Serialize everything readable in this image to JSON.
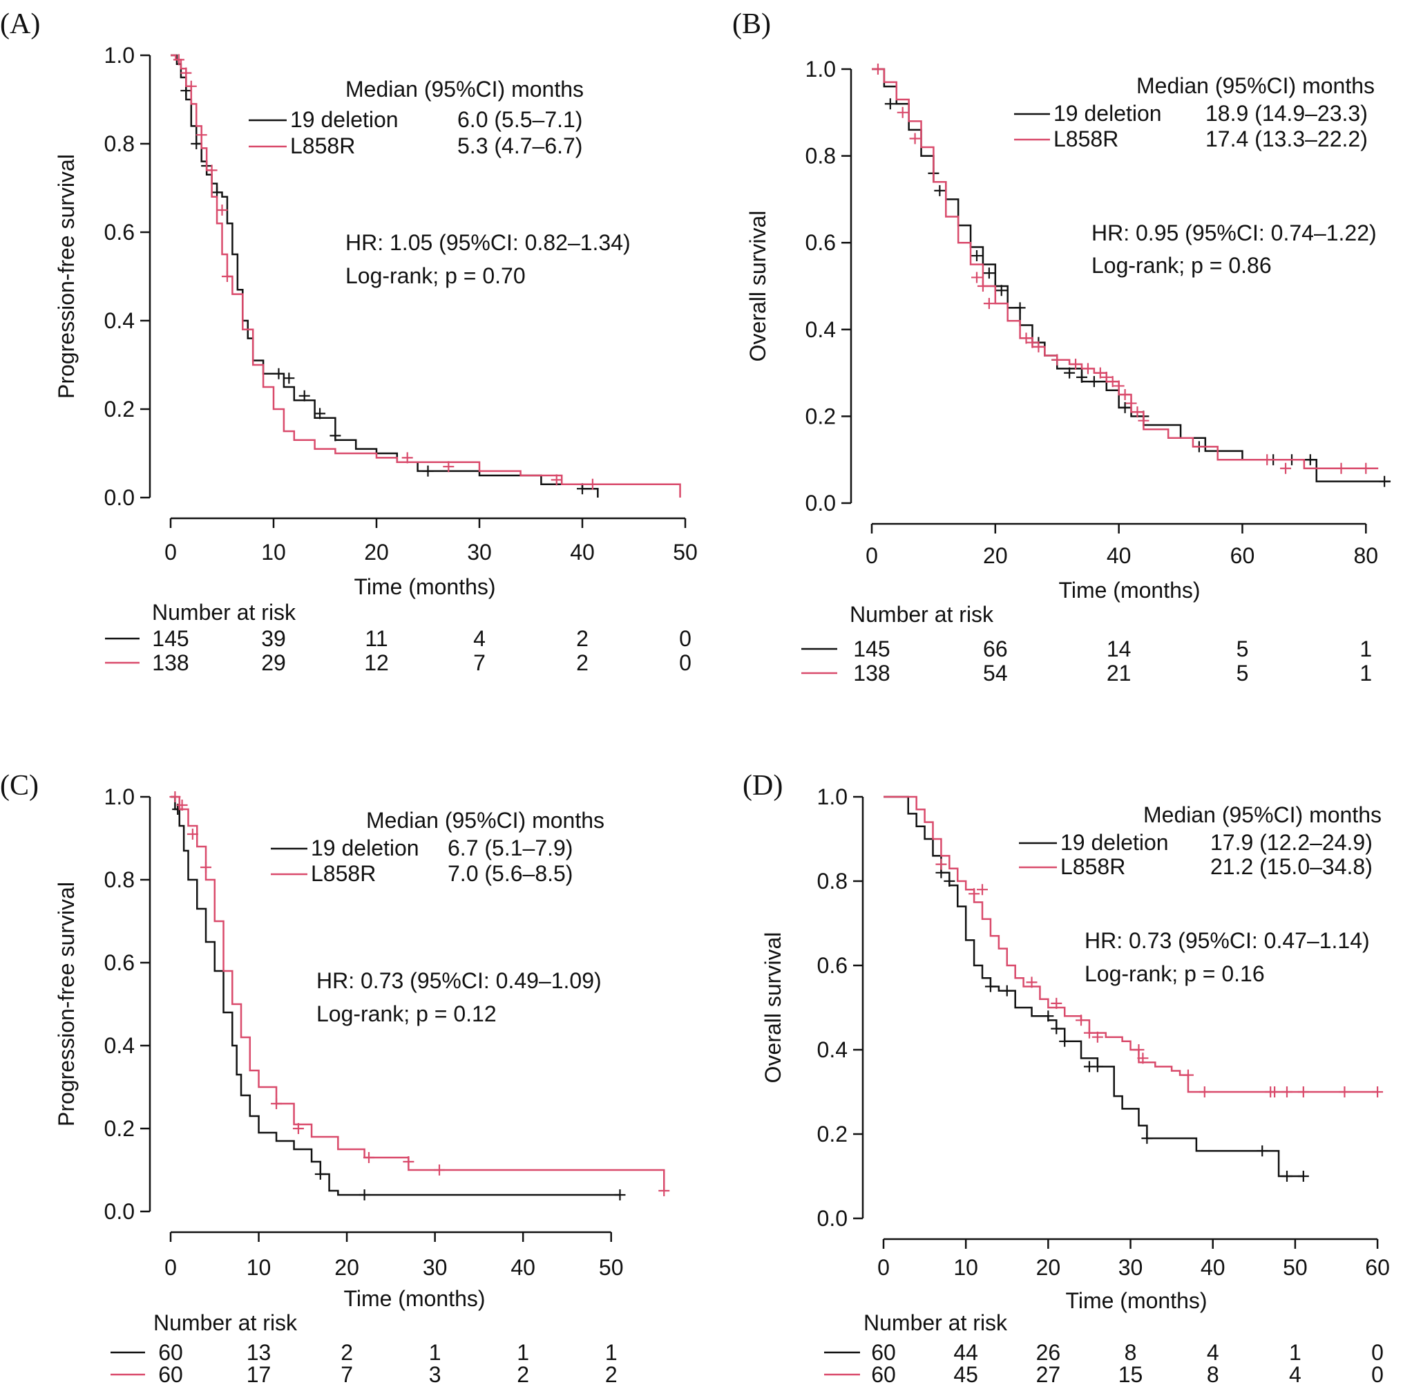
{
  "colors": {
    "deletion": "#111111",
    "l858r": "#d94a6b",
    "axis": "#111111"
  },
  "chart_data": [
    {
      "id": "A",
      "label": "(A)",
      "type": "line",
      "xlabel": "Time (months)",
      "ylabel": "Progression-free survival",
      "xlim": [
        0,
        50
      ],
      "ylim": [
        0,
        1
      ],
      "xticks": [
        "0",
        "10",
        "20",
        "30",
        "40",
        "50"
      ],
      "yticks": [
        "0.0",
        "0.2",
        "0.4",
        "0.6",
        "0.8",
        "1.0"
      ],
      "legend_title": "Median (95%CI) months",
      "series": [
        {
          "name": "19 deletion",
          "color": "#111111",
          "median": "6.0 (5.5–7.1)",
          "x": [
            0,
            0.6,
            1.0,
            1.5,
            2.0,
            2.5,
            3.0,
            3.5,
            4.0,
            4.5,
            5.0,
            5.5,
            6.0,
            6.5,
            7.0,
            7.5,
            8.0,
            9.0,
            10.0,
            11.0,
            12.0,
            14.0,
            16.0,
            18.0,
            20.0,
            22.0,
            24.0,
            30.0,
            36.0,
            40.0,
            41.5
          ],
          "y": [
            1.0,
            0.98,
            0.95,
            0.9,
            0.84,
            0.8,
            0.76,
            0.73,
            0.71,
            0.69,
            0.68,
            0.62,
            0.55,
            0.47,
            0.4,
            0.36,
            0.31,
            0.28,
            0.28,
            0.25,
            0.22,
            0.18,
            0.13,
            0.11,
            0.1,
            0.08,
            0.06,
            0.05,
            0.03,
            0.02,
            0.0
          ],
          "censor_x": [
            1.5,
            2.5,
            3.5,
            4.5,
            10.5,
            11.5,
            13.0,
            14.5,
            16.0,
            25.0,
            40.0
          ],
          "censor_y": [
            0.92,
            0.8,
            0.75,
            0.69,
            0.28,
            0.27,
            0.23,
            0.19,
            0.14,
            0.06,
            0.02
          ]
        },
        {
          "name": "L858R",
          "color": "#d94a6b",
          "median": "5.3 (4.7–6.7)",
          "x": [
            0,
            0.5,
            1.0,
            1.5,
            2.0,
            2.5,
            3.0,
            3.5,
            4.0,
            4.5,
            5.0,
            5.5,
            6.0,
            7.0,
            8.0,
            9.0,
            10.0,
            11.0,
            12.0,
            14.0,
            16.0,
            18.0,
            20.0,
            22.0,
            30.0,
            34.0,
            38.0,
            49.5
          ],
          "y": [
            1.0,
            0.99,
            0.97,
            0.93,
            0.89,
            0.84,
            0.79,
            0.74,
            0.68,
            0.62,
            0.55,
            0.5,
            0.46,
            0.38,
            0.3,
            0.25,
            0.2,
            0.15,
            0.13,
            0.11,
            0.1,
            0.1,
            0.09,
            0.08,
            0.06,
            0.05,
            0.03,
            0.0
          ],
          "censor_x": [
            0.8,
            1.5,
            2.0,
            3.0,
            4.0,
            5.0,
            5.5,
            23.0,
            27.0,
            37.5,
            41.0
          ],
          "censor_y": [
            0.99,
            0.96,
            0.93,
            0.82,
            0.74,
            0.65,
            0.5,
            0.09,
            0.07,
            0.04,
            0.03
          ]
        }
      ],
      "hr": "HR: 1.05 (95%CI: 0.82–1.34)",
      "logrank": "Log-rank; p = 0.70",
      "risk_title": "Number at risk",
      "risk_times": [
        0,
        10,
        20,
        30,
        40,
        50
      ],
      "risk": [
        [
          "145",
          "39",
          "11",
          "4",
          "2",
          "0"
        ],
        [
          "138",
          "29",
          "12",
          "7",
          "2",
          "0"
        ]
      ]
    },
    {
      "id": "B",
      "label": "(B)",
      "type": "line",
      "xlabel": "Time (months)",
      "ylabel": "Overall survival",
      "xlim": [
        0,
        85
      ],
      "ylim": [
        0,
        1
      ],
      "xticks": [
        "0",
        "20",
        "40",
        "60",
        "80"
      ],
      "yticks": [
        "0.0",
        "0.2",
        "0.4",
        "0.6",
        "0.8",
        "1.0"
      ],
      "legend_title": "Median (95%CI) months",
      "series": [
        {
          "name": "19 deletion",
          "color": "#111111",
          "median": "18.9 (14.9–23.3)",
          "x": [
            0,
            2,
            4,
            6,
            8,
            10,
            12,
            14,
            16,
            18,
            20,
            22,
            24,
            26,
            28,
            30,
            34,
            38,
            40,
            42,
            44,
            46,
            50,
            54,
            60,
            64,
            68,
            72,
            84
          ],
          "y": [
            1.0,
            0.96,
            0.92,
            0.86,
            0.8,
            0.74,
            0.7,
            0.64,
            0.59,
            0.55,
            0.5,
            0.45,
            0.41,
            0.37,
            0.34,
            0.31,
            0.28,
            0.26,
            0.22,
            0.2,
            0.18,
            0.18,
            0.15,
            0.12,
            0.1,
            0.1,
            0.1,
            0.05,
            0.05
          ],
          "censor_x": [
            3,
            10,
            11,
            17,
            19,
            20,
            21,
            24,
            27,
            30,
            32,
            34,
            36,
            41,
            44,
            53,
            65,
            68,
            71,
            83
          ],
          "censor_y": [
            0.92,
            0.76,
            0.72,
            0.57,
            0.53,
            0.5,
            0.49,
            0.45,
            0.37,
            0.33,
            0.3,
            0.29,
            0.28,
            0.22,
            0.2,
            0.13,
            0.1,
            0.1,
            0.1,
            0.05
          ]
        },
        {
          "name": "L858R",
          "color": "#d94a6b",
          "median": "17.4 (13.3–22.2)",
          "x": [
            0,
            2,
            4,
            6,
            8,
            10,
            12,
            14,
            16,
            18,
            20,
            22,
            24,
            26,
            28,
            30,
            32,
            34,
            36,
            38,
            40,
            42,
            44,
            48,
            52,
            56,
            60,
            64,
            70,
            82
          ],
          "y": [
            1.0,
            0.97,
            0.93,
            0.88,
            0.82,
            0.74,
            0.66,
            0.6,
            0.55,
            0.5,
            0.46,
            0.42,
            0.38,
            0.36,
            0.34,
            0.33,
            0.32,
            0.31,
            0.3,
            0.28,
            0.25,
            0.21,
            0.17,
            0.15,
            0.13,
            0.1,
            0.1,
            0.1,
            0.08,
            0.08
          ],
          "censor_x": [
            1,
            5,
            7,
            17,
            18,
            19,
            25,
            26,
            27,
            30,
            33,
            35,
            37,
            38,
            39,
            40,
            41,
            42,
            43,
            44,
            64,
            67,
            76,
            80
          ],
          "censor_y": [
            1.0,
            0.9,
            0.84,
            0.52,
            0.5,
            0.46,
            0.38,
            0.37,
            0.36,
            0.33,
            0.32,
            0.31,
            0.3,
            0.29,
            0.28,
            0.27,
            0.25,
            0.23,
            0.21,
            0.19,
            0.1,
            0.08,
            0.08,
            0.08
          ]
        }
      ],
      "hr": "HR: 0.95 (95%CI: 0.74–1.22)",
      "logrank": "Log-rank; p = 0.86",
      "risk_title": "Number at risk",
      "risk_times": [
        0,
        20,
        40,
        60,
        80
      ],
      "risk": [
        [
          "145",
          "66",
          "14",
          "5",
          "1"
        ],
        [
          "138",
          "54",
          "21",
          "5",
          "1"
        ]
      ]
    },
    {
      "id": "C",
      "label": "(C)",
      "type": "line",
      "xlabel": "Time (months)",
      "ylabel": "Progression-free survival",
      "xlim": [
        0,
        57
      ],
      "ylim": [
        0,
        1
      ],
      "xticks": [
        "0",
        "10",
        "20",
        "30",
        "40",
        "50"
      ],
      "yticks": [
        "0.0",
        "0.2",
        "0.4",
        "0.6",
        "0.8",
        "1.0"
      ],
      "legend_title": "Median (95%CI) months",
      "series": [
        {
          "name": "19 deletion",
          "color": "#111111",
          "median": "6.7 (5.1–7.9)",
          "x": [
            0,
            0.5,
            1.0,
            1.5,
            2.0,
            3.0,
            4.0,
            5.0,
            6.0,
            7.0,
            7.5,
            8.0,
            9.0,
            10.0,
            12.0,
            14.0,
            16.0,
            17.0,
            18.0,
            19.0,
            51.0
          ],
          "y": [
            1.0,
            0.97,
            0.93,
            0.87,
            0.8,
            0.73,
            0.65,
            0.58,
            0.48,
            0.4,
            0.33,
            0.28,
            0.23,
            0.19,
            0.17,
            0.15,
            0.12,
            0.09,
            0.05,
            0.04,
            0.04
          ],
          "censor_x": [
            0.8,
            17.0,
            22.0,
            51.0
          ],
          "censor_y": [
            0.97,
            0.09,
            0.04,
            0.04
          ]
        },
        {
          "name": "L858R",
          "color": "#d94a6b",
          "median": "7.0 (5.6–8.5)",
          "x": [
            0,
            1.0,
            2.0,
            3.0,
            4.0,
            5.0,
            6.0,
            7.0,
            8.0,
            9.0,
            10.0,
            12.0,
            14.0,
            16.0,
            19.0,
            22.0,
            27.0,
            30.0,
            56.0
          ],
          "y": [
            1.0,
            0.97,
            0.93,
            0.88,
            0.8,
            0.7,
            0.58,
            0.5,
            0.42,
            0.34,
            0.3,
            0.26,
            0.21,
            0.18,
            0.15,
            0.13,
            0.1,
            0.1,
            0.05
          ],
          "censor_x": [
            0.5,
            1.3,
            2.5,
            4.0,
            12.0,
            14.5,
            22.5,
            27.0,
            30.5,
            56.0
          ],
          "censor_y": [
            1.0,
            0.98,
            0.91,
            0.83,
            0.26,
            0.2,
            0.13,
            0.12,
            0.1,
            0.05
          ]
        }
      ],
      "hr": "HR: 0.73 (95%CI: 0.49–1.09)",
      "logrank": "Log-rank; p = 0.12",
      "risk_title": "Number at risk",
      "risk_times": [
        0,
        10,
        20,
        30,
        40,
        50
      ],
      "risk": [
        [
          "60",
          "13",
          "2",
          "1",
          "1",
          "1"
        ],
        [
          "60",
          "17",
          "7",
          "3",
          "2",
          "2"
        ]
      ]
    },
    {
      "id": "D",
      "label": "(D)",
      "type": "line",
      "xlabel": "Time (months)",
      "ylabel": "Overall survival",
      "xlim": [
        0,
        61
      ],
      "ylim": [
        0,
        1
      ],
      "xticks": [
        "0",
        "10",
        "20",
        "30",
        "40",
        "50",
        "60"
      ],
      "yticks": [
        "0.0",
        "0.2",
        "0.4",
        "0.6",
        "0.8",
        "1.0"
      ],
      "legend_title": "Median (95%CI) months",
      "series": [
        {
          "name": "19 deletion",
          "color": "#111111",
          "median": "17.9 (12.2–24.9)",
          "x": [
            0,
            3,
            4,
            5,
            6,
            7,
            8,
            9,
            10,
            11,
            12,
            13,
            14,
            16,
            18,
            20,
            21,
            22,
            24,
            26,
            28,
            29,
            31,
            32,
            38,
            42,
            48,
            51
          ],
          "y": [
            1.0,
            0.96,
            0.93,
            0.9,
            0.86,
            0.82,
            0.79,
            0.74,
            0.66,
            0.6,
            0.57,
            0.55,
            0.54,
            0.5,
            0.48,
            0.47,
            0.45,
            0.42,
            0.38,
            0.36,
            0.29,
            0.26,
            0.22,
            0.19,
            0.16,
            0.16,
            0.1,
            0.1
          ],
          "censor_x": [
            7,
            8,
            13,
            15,
            20,
            21,
            22,
            25,
            26,
            32,
            46,
            49,
            51
          ],
          "censor_y": [
            0.82,
            0.8,
            0.55,
            0.54,
            0.48,
            0.45,
            0.42,
            0.36,
            0.36,
            0.19,
            0.16,
            0.1,
            0.1
          ]
        },
        {
          "name": "L858R",
          "color": "#d94a6b",
          "median": "21.2 (15.0–34.8)",
          "x": [
            0,
            4,
            5,
            6,
            7,
            8,
            9,
            10,
            11,
            12,
            13,
            14,
            15,
            16,
            17,
            19,
            20,
            22,
            24,
            25,
            27,
            29,
            30,
            31,
            33,
            35,
            36,
            37,
            60
          ],
          "y": [
            1.0,
            0.97,
            0.94,
            0.9,
            0.86,
            0.83,
            0.8,
            0.78,
            0.75,
            0.71,
            0.67,
            0.64,
            0.6,
            0.57,
            0.55,
            0.52,
            0.5,
            0.48,
            0.47,
            0.44,
            0.43,
            0.42,
            0.4,
            0.37,
            0.36,
            0.35,
            0.34,
            0.3,
            0.3
          ],
          "censor_x": [
            7,
            11,
            12,
            18,
            21,
            24,
            25,
            26,
            31,
            31.5,
            37,
            39,
            47,
            47.5,
            49,
            51,
            56,
            60
          ],
          "censor_y": [
            0.84,
            0.77,
            0.78,
            0.56,
            0.51,
            0.47,
            0.44,
            0.43,
            0.4,
            0.38,
            0.34,
            0.3,
            0.3,
            0.3,
            0.3,
            0.3,
            0.3,
            0.3
          ]
        }
      ],
      "hr": "HR: 0.73 (95%CI: 0.47–1.14)",
      "logrank": "Log-rank; p = 0.16",
      "risk_title": "Number at risk",
      "risk_times": [
        0,
        10,
        20,
        30,
        40,
        50,
        60
      ],
      "risk": [
        [
          "60",
          "44",
          "26",
          "8",
          "4",
          "1",
          "0"
        ],
        [
          "60",
          "45",
          "27",
          "15",
          "8",
          "4",
          "0"
        ]
      ]
    }
  ]
}
